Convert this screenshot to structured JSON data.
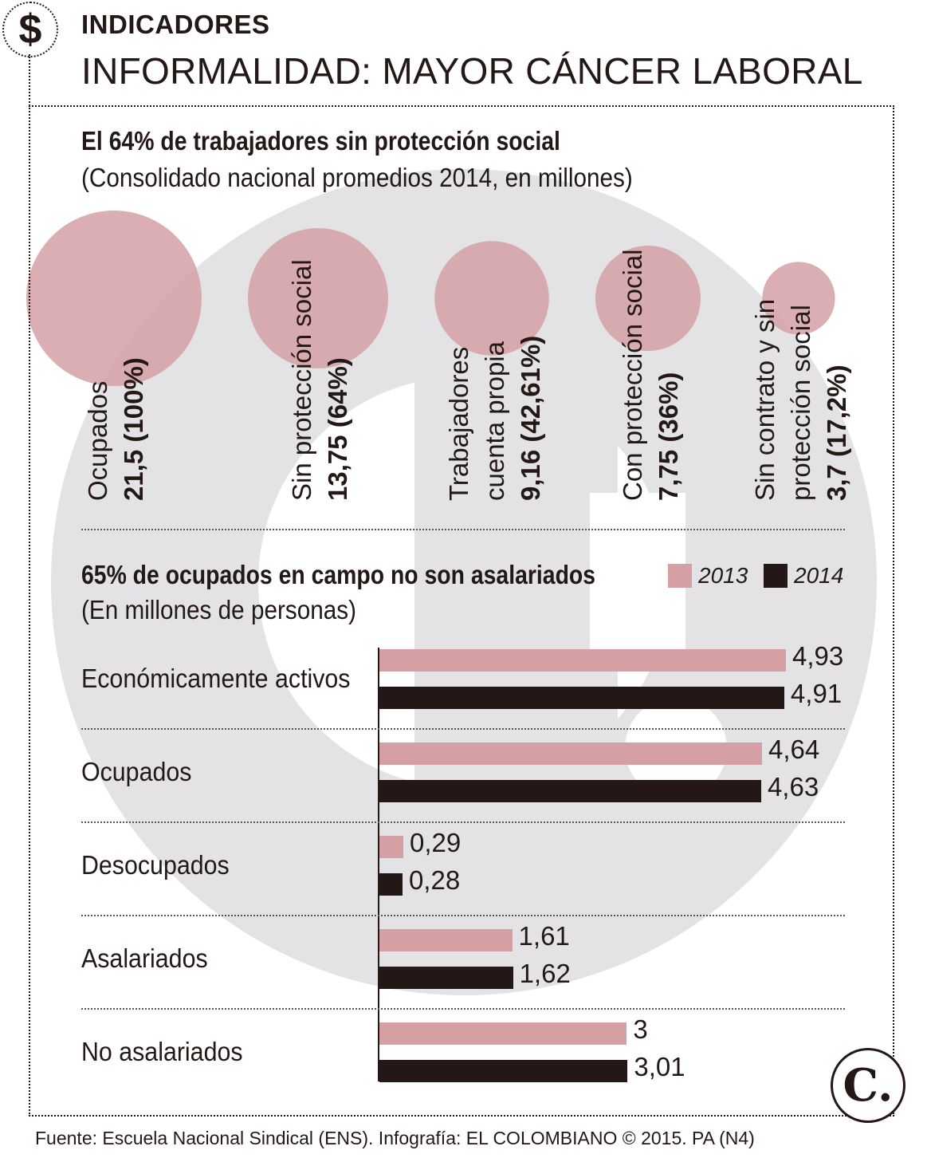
{
  "header": {
    "section_tag": "INDICADORES",
    "title": "INFORMALIDAD: MAYOR CÁNCER LABORAL",
    "currency_icon": "$"
  },
  "colors": {
    "pink": "#d4a0a4",
    "dark": "#231815",
    "watermark": "#e3e2e4"
  },
  "chart_data": [
    {
      "type": "bubble",
      "title": "El 64% de trabajadores sin protección social",
      "subtitle": "(Consolidado nacional promedios 2014, en millones)",
      "items": [
        {
          "name": [
            "Ocupados"
          ],
          "value": 21.5,
          "label_value": "21,5 (100%)"
        },
        {
          "name": [
            "Sin protección social"
          ],
          "value": 13.75,
          "label_value": "13,75 (64%)"
        },
        {
          "name": [
            "Trabajadores",
            "cuenta propia"
          ],
          "value": 9.16,
          "label_value": "9,16 (42,61%)"
        },
        {
          "name": [
            "Con protección social"
          ],
          "value": 7.75,
          "label_value": "7,75 (36%)"
        },
        {
          "name": [
            "Sin contrato y sin",
            "protección social"
          ],
          "value": 3.7,
          "label_value": "3,7 (17,2%)"
        }
      ]
    },
    {
      "type": "bar",
      "orientation": "horizontal",
      "title": "65% de ocupados en campo no son asalariados",
      "subtitle": "(En millones de personas)",
      "xlim": [
        0,
        4.93
      ],
      "categories": [
        "Económicamente activos",
        "Ocupados",
        "Desocupados",
        "Asalariados",
        "No asalariados"
      ],
      "series": [
        {
          "name": "2013",
          "values": [
            4.93,
            4.64,
            0.29,
            1.61,
            3
          ],
          "labels": [
            "4,93",
            "4,64",
            "0,29",
            "1,61",
            "3"
          ]
        },
        {
          "name": "2014",
          "values": [
            4.91,
            4.63,
            0.28,
            1.62,
            3.01
          ],
          "labels": [
            "4,91",
            "4,63",
            "0,28",
            "1,62",
            "3,01"
          ]
        }
      ]
    }
  ],
  "footer": {
    "source": "Fuente: Escuela Nacional Sindical (ENS). Infografía: EL COLOMBIANO © 2015. PA (N4)",
    "logo_letter": "C."
  }
}
